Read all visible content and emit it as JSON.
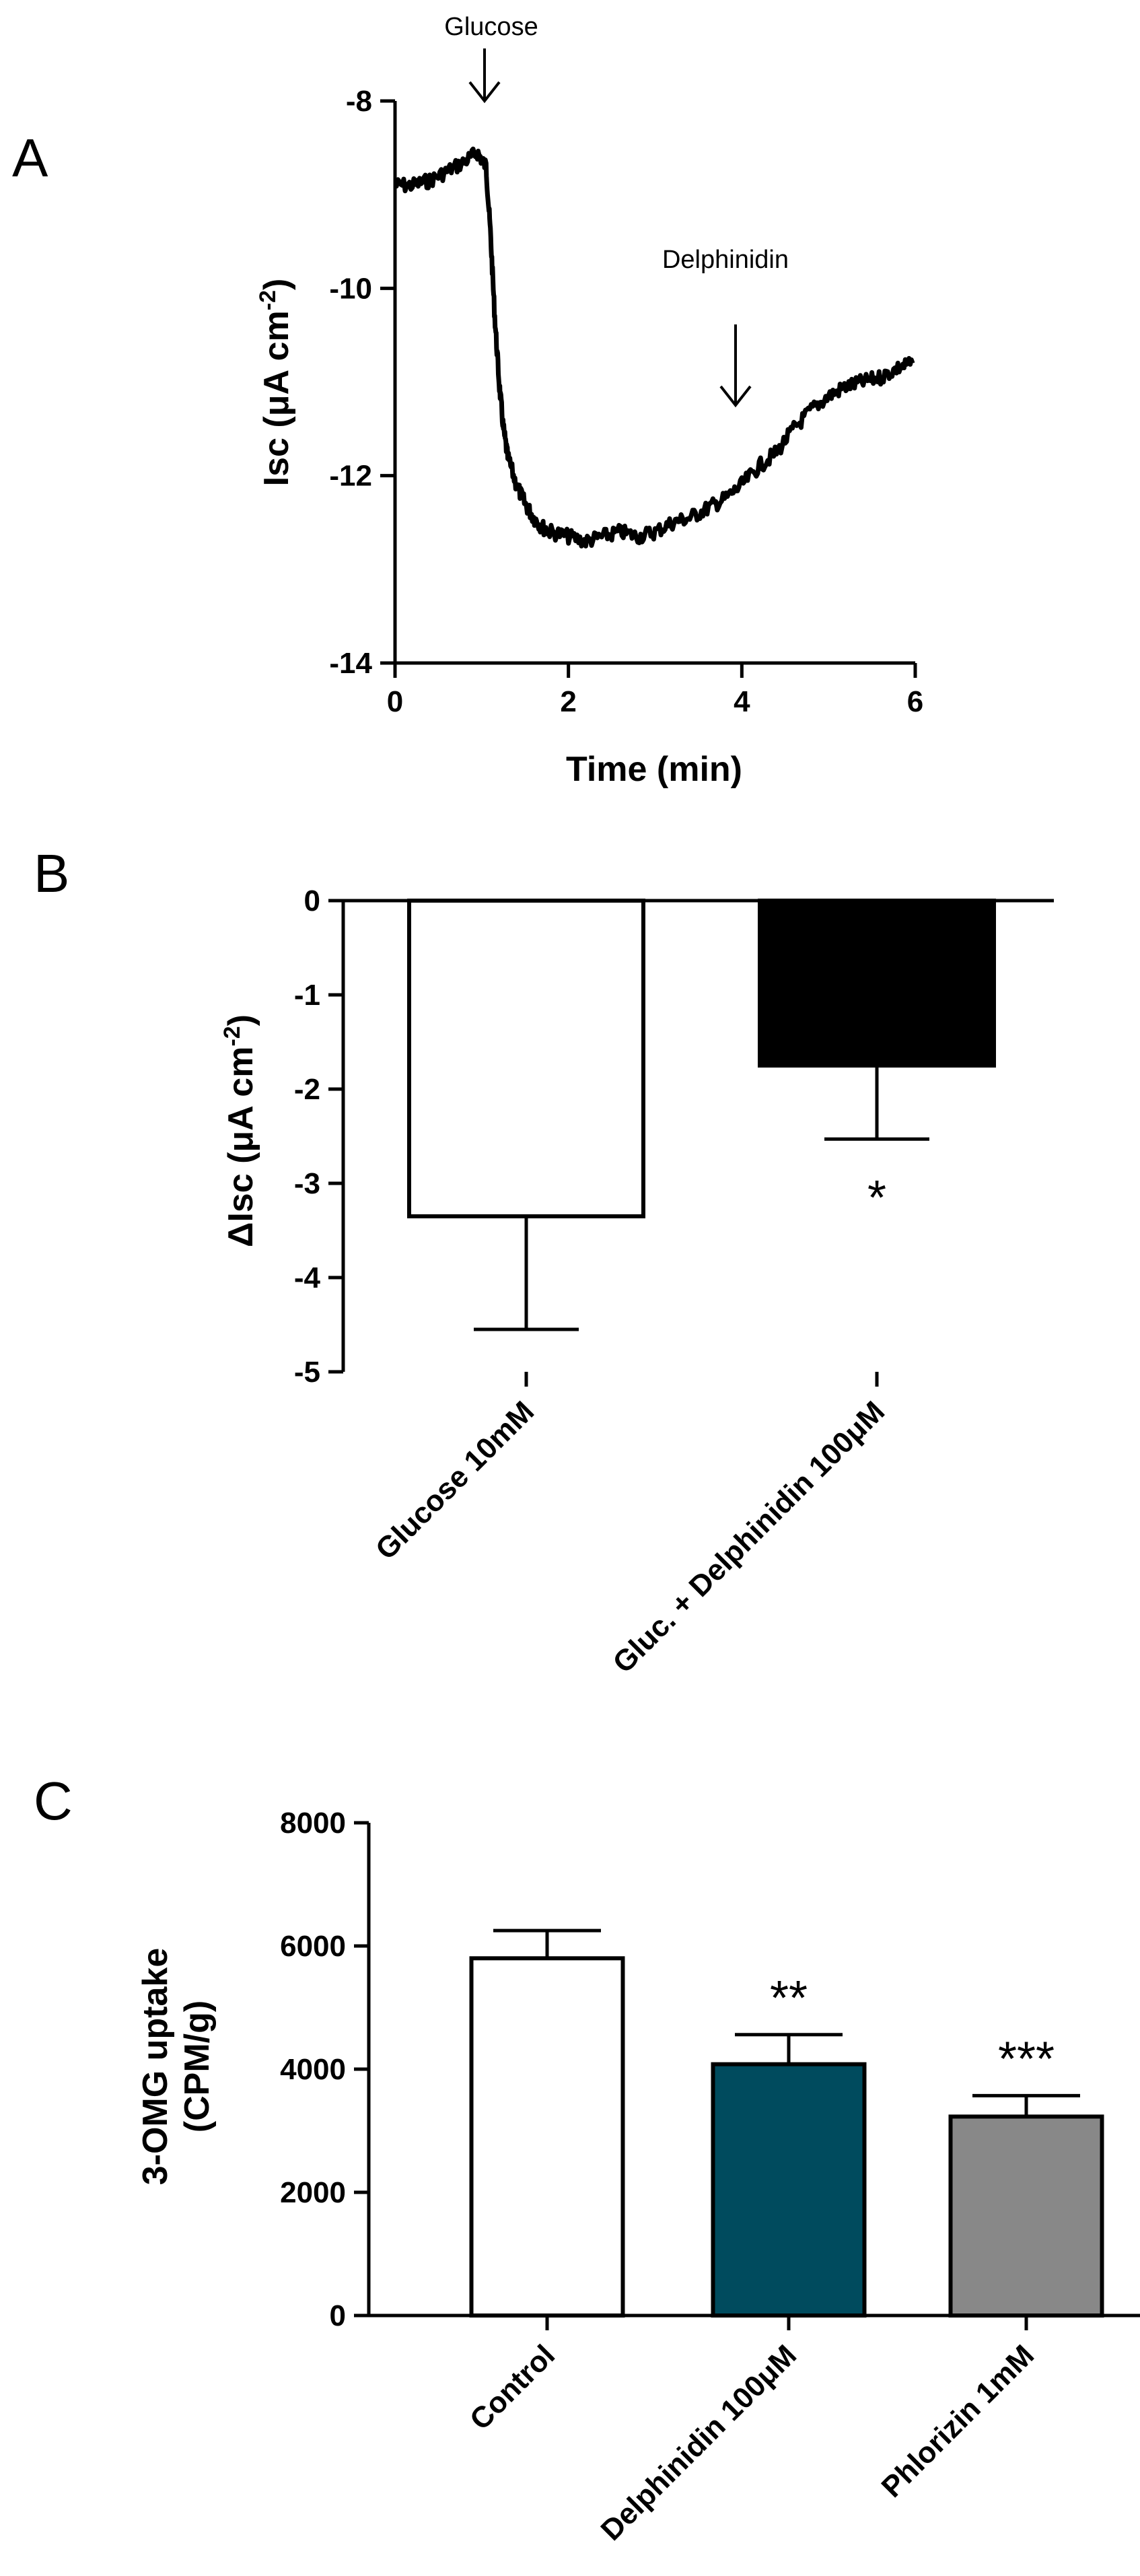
{
  "panels": [
    {
      "letter": "A"
    },
    {
      "letter": "B"
    },
    {
      "letter": "C"
    }
  ],
  "chart_data": [
    {
      "type": "line",
      "panel": "A",
      "xlabel": "Time (min)",
      "ylabel": "Isc (μA cm-2)",
      "xlim": [
        0,
        6
      ],
      "ylim": [
        -14,
        -8
      ],
      "xticks": [
        "0",
        "2",
        "4",
        "6"
      ],
      "yticks": [
        "-8",
        "-10",
        "-12",
        "-14"
      ],
      "x": [
        0,
        0.2,
        0.4,
        0.6,
        0.8,
        0.95,
        1.05,
        1.1,
        1.15,
        1.2,
        1.25,
        1.3,
        1.4,
        1.5,
        1.6,
        1.7,
        1.8,
        2.0,
        2.2,
        2.4,
        2.6,
        2.8,
        3.0,
        3.2,
        3.4,
        3.6,
        3.8,
        4.0,
        4.2,
        4.4,
        4.6,
        4.8,
        5.0,
        5.2,
        5.4,
        5.6,
        5.8,
        5.97
      ],
      "y": [
        -8.9,
        -8.9,
        -8.85,
        -8.75,
        -8.65,
        -8.55,
        -8.7,
        -9.4,
        -10.3,
        -11.0,
        -11.5,
        -11.8,
        -12.1,
        -12.3,
        -12.45,
        -12.55,
        -12.6,
        -12.65,
        -12.7,
        -12.65,
        -12.6,
        -12.65,
        -12.6,
        -12.5,
        -12.45,
        -12.35,
        -12.25,
        -12.1,
        -11.9,
        -11.75,
        -11.5,
        -11.3,
        -11.15,
        -11.05,
        -11.0,
        -10.95,
        -10.85,
        -10.8
      ],
      "annotations": [
        {
          "text": "Glucose",
          "x": 1.05,
          "y": -8.0
        },
        {
          "text": "Delphinidin",
          "x": 3.9,
          "y": -11.1
        }
      ]
    },
    {
      "type": "bar",
      "panel": "B",
      "categories": [
        "Glucose 10mM",
        "Gluc. + Delphinidin 100μM"
      ],
      "values": [
        -3.35,
        -1.75
      ],
      "errors": [
        1.2,
        0.78
      ],
      "colors": [
        "#ffffff",
        "#000000"
      ],
      "significance": [
        "",
        "*"
      ],
      "ylabel": "ΔIsc (μA cm-2)",
      "ylim": [
        -5,
        0
      ],
      "yticks": [
        "0",
        "-1",
        "-2",
        "-3",
        "-4",
        "-5"
      ]
    },
    {
      "type": "bar",
      "panel": "C",
      "categories": [
        "Control",
        "Delphinidin 100μM",
        "Phlorizin 1mM"
      ],
      "values": [
        5800,
        4080,
        3230
      ],
      "errors": [
        450,
        480,
        340
      ],
      "colors": [
        "#ffffff",
        "#004b5e",
        "#888888"
      ],
      "significance": [
        "",
        "**",
        "***"
      ],
      "ylabel_line1": "3-OMG uptake",
      "ylabel_line2": "(CPM/g)",
      "ylim": [
        0,
        8000
      ],
      "yticks": [
        "0",
        "2000",
        "4000",
        "6000",
        "8000"
      ]
    }
  ]
}
